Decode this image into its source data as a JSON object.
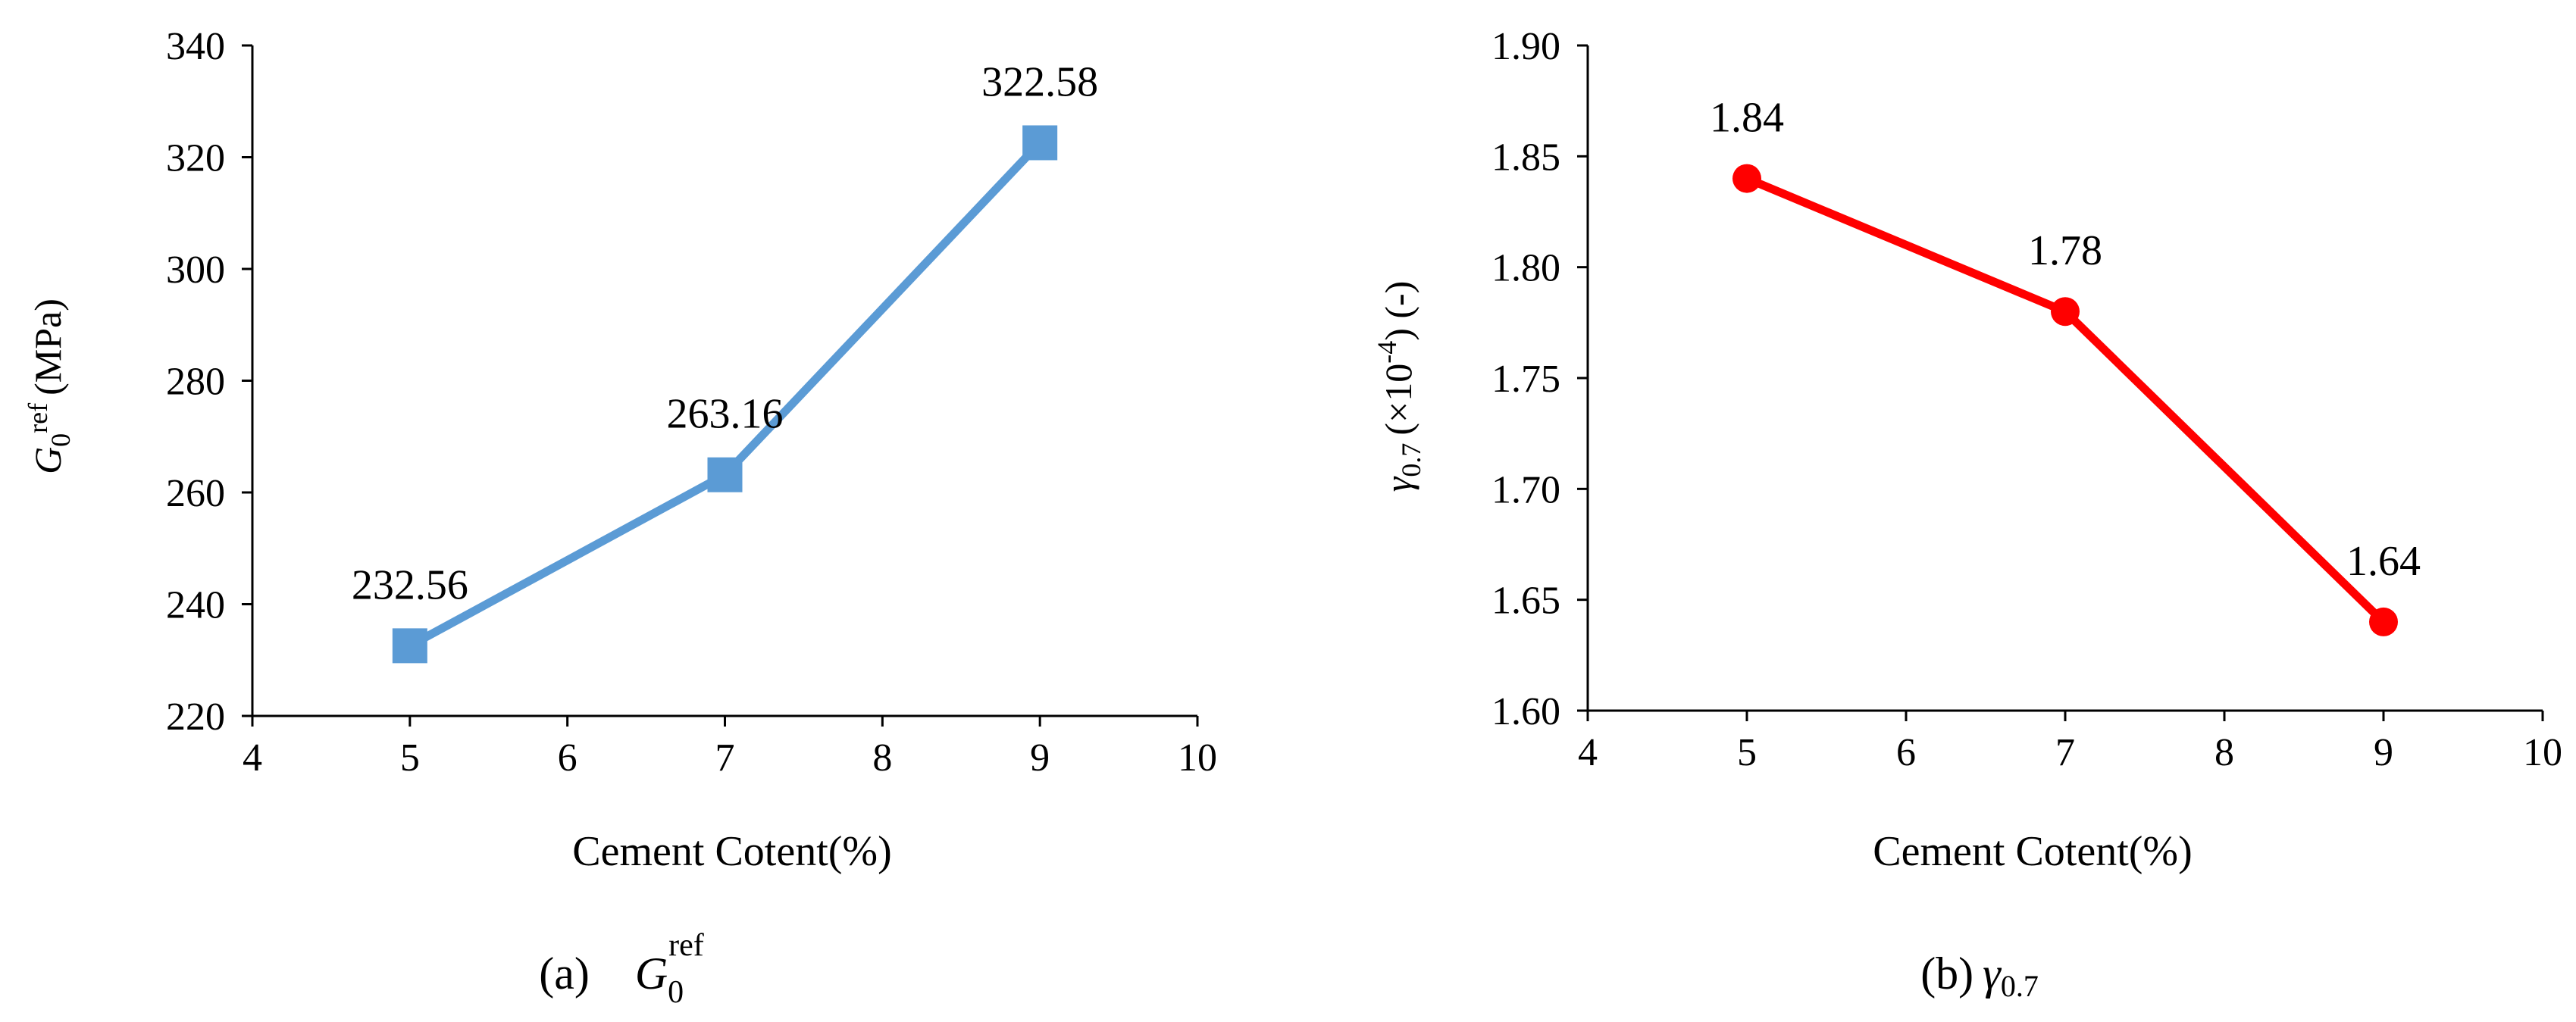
{
  "chart_data": [
    {
      "type": "line",
      "x": [
        5,
        7,
        9
      ],
      "series": [
        {
          "values": [
            232.56,
            263.16,
            322.58
          ],
          "color": "#5B9BD5",
          "marker": "square",
          "labels": [
            "232.56",
            "263.16",
            "322.58"
          ]
        }
      ],
      "xlim": [
        4,
        10
      ],
      "ylim": [
        220,
        340
      ],
      "xticks": [
        "4",
        "5",
        "6",
        "7",
        "8",
        "9",
        "10"
      ],
      "yticks": [
        "220",
        "240",
        "260",
        "280",
        "300",
        "320",
        "340"
      ],
      "xlabel": "Cement Cotent(%)",
      "ylabel": {
        "main": "G",
        "sub": "0",
        "sup": "ref",
        "unit": "(MPa)"
      },
      "caption": {
        "tag": "(a)",
        "main": "G",
        "sub": "0",
        "sup": "ref"
      },
      "grid": false
    },
    {
      "type": "line",
      "x": [
        5,
        7,
        9
      ],
      "series": [
        {
          "values": [
            1.84,
            1.78,
            1.64
          ],
          "color": "#FF0000",
          "marker": "circle",
          "labels": [
            "1.84",
            "1.78",
            "1.64"
          ]
        }
      ],
      "xlim": [
        4,
        10
      ],
      "ylim": [
        1.6,
        1.9
      ],
      "xticks": [
        "4",
        "5",
        "6",
        "7",
        "8",
        "9",
        "10"
      ],
      "yticks": [
        "1.60",
        "1.65",
        "1.70",
        "1.75",
        "1.80",
        "1.85",
        "1.90"
      ],
      "xlabel": "Cement Cotent(%)",
      "ylabel": {
        "main": "γ",
        "sub": "0.7",
        "mid": "(×10",
        "sup": "-4",
        "end": ") (-)"
      },
      "caption": {
        "tag": "(b)",
        "main": "γ",
        "sub": "0.7"
      },
      "grid": false
    }
  ]
}
